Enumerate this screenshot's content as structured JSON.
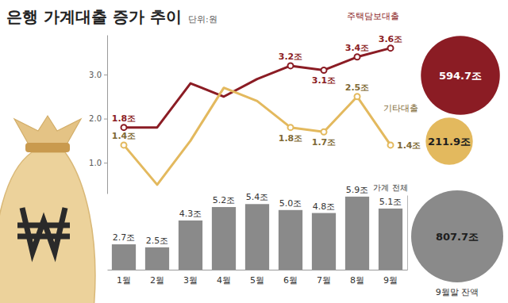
{
  "chart_data": {
    "type": "combo",
    "title": "은행 가계대출 증가 추이",
    "subtitle": "단위:원",
    "categories": [
      "1월",
      "2월",
      "3월",
      "4월",
      "5월",
      "6월",
      "7월",
      "8월",
      "9월"
    ],
    "series": [
      {
        "name": "주택담보대출",
        "type": "line",
        "color": "#8b1c24",
        "marker": "circle",
        "data_labels": true,
        "values": [
          1.8,
          1.8,
          2.8,
          2.5,
          2.9,
          3.2,
          3.1,
          3.4,
          3.6
        ],
        "value_labels": [
          "1.8조",
          null,
          null,
          null,
          null,
          "3.2조",
          "3.1조",
          "3.4조",
          "3.6조"
        ],
        "balance": 594.7,
        "balance_label": "594.7조"
      },
      {
        "name": "기타대출",
        "type": "line",
        "color": "#e3b95e",
        "marker": "circle",
        "data_labels": true,
        "values": [
          1.4,
          0.5,
          1.5,
          2.7,
          2.4,
          1.8,
          1.7,
          2.5,
          1.4
        ],
        "value_labels": [
          "1.4조",
          null,
          null,
          null,
          null,
          "1.8조",
          "1.7조",
          "2.5조",
          "1.4조"
        ],
        "balance": 211.9,
        "balance_label": "211.9조"
      },
      {
        "name": "가계 전체",
        "type": "bar",
        "axis": "y2",
        "color": "#8a8a8a",
        "data_labels": true,
        "values": [
          2.7,
          2.5,
          4.3,
          5.2,
          5.4,
          5.0,
          4.8,
          5.9,
          5.1
        ],
        "value_labels": [
          "2.7조",
          "2.5조",
          "4.3조",
          "5.2조",
          "5.4조",
          "5.0조",
          "4.8조",
          "5.9조",
          "5.1조"
        ],
        "balance": 807.7,
        "balance_label": "807.7조"
      }
    ],
    "ylim": [
      0.3,
      3.9
    ],
    "yticks": [
      {
        "value": 1,
        "label": "1.0"
      },
      {
        "value": 2,
        "label": "2.0"
      },
      {
        "value": 3,
        "label": "3.0"
      }
    ],
    "y2lim": [
      1,
      6
    ],
    "y2ticks": [],
    "balance_title": "9월말 잔액",
    "grid": false
  }
}
